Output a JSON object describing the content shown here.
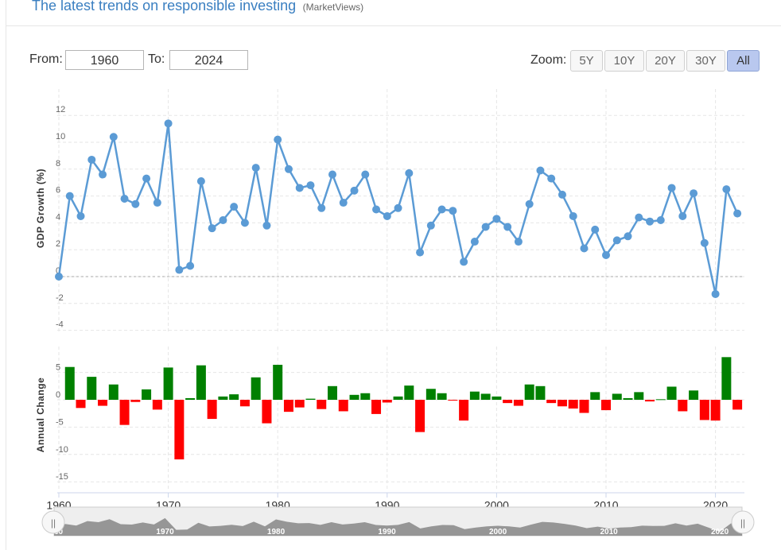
{
  "header": {
    "title": "The latest trends on responsible investing",
    "source": "(MarketViews)"
  },
  "range": {
    "from_label": "From:",
    "from_value": "1960",
    "to_label": "To:",
    "to_value": "2024"
  },
  "zoom": {
    "label": "Zoom:",
    "buttons": [
      "5Y",
      "10Y",
      "20Y",
      "30Y",
      "All"
    ],
    "active": "All"
  },
  "colors": {
    "line": "#5b9bd5",
    "positive": "#008000",
    "negative": "#ff0000",
    "navigator": "#8c8c8c"
  },
  "chart_data": [
    {
      "type": "line",
      "ylabel": "GDP Growth (%)",
      "ylim": [
        -4,
        12
      ],
      "yticks": [
        -4,
        -2,
        0,
        2,
        4,
        6,
        8,
        10,
        12
      ],
      "grid": true,
      "x": [
        1960,
        1961,
        1962,
        1963,
        1964,
        1965,
        1966,
        1967,
        1968,
        1969,
        1970,
        1971,
        1972,
        1973,
        1974,
        1975,
        1976,
        1977,
        1978,
        1979,
        1980,
        1981,
        1982,
        1983,
        1984,
        1985,
        1986,
        1987,
        1988,
        1989,
        1990,
        1991,
        1992,
        1993,
        1994,
        1995,
        1996,
        1997,
        1998,
        1999,
        2000,
        2001,
        2002,
        2003,
        2004,
        2005,
        2006,
        2007,
        2008,
        2009,
        2010,
        2011,
        2012,
        2013,
        2014,
        2015,
        2016,
        2017,
        2018,
        2019,
        2020,
        2021,
        2022
      ],
      "values": [
        0.0,
        6.0,
        4.5,
        8.7,
        7.6,
        10.4,
        5.8,
        5.4,
        7.3,
        5.5,
        11.4,
        0.5,
        0.8,
        7.1,
        3.6,
        4.2,
        5.2,
        4.0,
        8.1,
        3.8,
        10.2,
        8.0,
        6.6,
        6.8,
        5.1,
        7.6,
        5.5,
        6.4,
        7.6,
        5.0,
        4.5,
        5.1,
        7.7,
        1.8,
        3.8,
        5.0,
        4.9,
        1.1,
        2.6,
        3.7,
        4.3,
        3.7,
        2.6,
        5.4,
        7.9,
        7.3,
        6.1,
        4.5,
        2.1,
        3.5,
        1.6,
        2.7,
        3.0,
        4.4,
        4.1,
        4.2,
        6.6,
        4.5,
        6.2,
        2.5,
        -1.3,
        6.5,
        4.7
      ]
    },
    {
      "type": "bar",
      "ylabel": "Annual Change",
      "ylim": [
        -15,
        8
      ],
      "yticks": [
        -15,
        -10,
        -5,
        0,
        5
      ],
      "grid": true,
      "x": [
        1961,
        1962,
        1963,
        1964,
        1965,
        1966,
        1967,
        1968,
        1969,
        1970,
        1971,
        1972,
        1973,
        1974,
        1975,
        1976,
        1977,
        1978,
        1979,
        1980,
        1981,
        1982,
        1983,
        1984,
        1985,
        1986,
        1987,
        1988,
        1989,
        1990,
        1991,
        1992,
        1993,
        1994,
        1995,
        1996,
        1997,
        1998,
        1999,
        2000,
        2001,
        2002,
        2003,
        2004,
        2005,
        2006,
        2007,
        2008,
        2009,
        2010,
        2011,
        2012,
        2013,
        2014,
        2015,
        2016,
        2017,
        2018,
        2019,
        2020,
        2021,
        2022
      ],
      "values": [
        6.0,
        -1.5,
        4.2,
        -1.1,
        2.8,
        -4.6,
        -0.4,
        1.9,
        -1.8,
        5.9,
        -10.9,
        0.3,
        6.3,
        -3.5,
        0.6,
        1.0,
        -1.2,
        4.1,
        -4.3,
        6.4,
        -2.2,
        -1.4,
        0.2,
        -1.7,
        2.5,
        -2.1,
        0.9,
        1.2,
        -2.6,
        -0.5,
        0.6,
        2.6,
        -5.9,
        2.0,
        1.2,
        -0.1,
        -3.8,
        1.5,
        1.1,
        0.6,
        -0.6,
        -1.1,
        2.8,
        2.5,
        -0.6,
        -1.2,
        -1.6,
        -2.4,
        1.4,
        -1.9,
        1.1,
        0.3,
        1.4,
        -0.3,
        0.1,
        2.4,
        -2.1,
        1.7,
        -3.7,
        -3.8,
        7.8,
        -1.8
      ]
    }
  ],
  "x_axis": {
    "ticks": [
      1960,
      1970,
      1980,
      1990,
      2000,
      2010,
      2020
    ]
  },
  "navigator": {
    "tick_labels": [
      "1960",
      "1970",
      "1980",
      "1990",
      "2000",
      "2010",
      "2020"
    ],
    "left_handle": "||",
    "right_handle": "||"
  }
}
